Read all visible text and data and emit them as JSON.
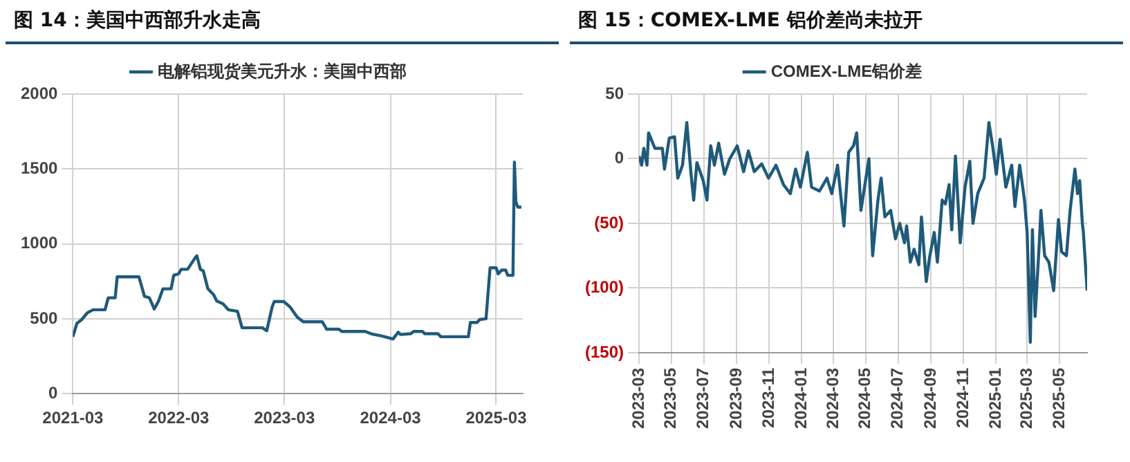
{
  "chart_data": [
    {
      "type": "line",
      "title": "图 14：美国中西部升水走高",
      "legend": "top",
      "grid": true,
      "marker": "none",
      "line_style": "solid",
      "x": [
        "2021-03-01",
        "2021-03-15",
        "2021-04-01",
        "2021-04-20",
        "2021-05-10",
        "2021-06-20",
        "2021-07-01",
        "2021-07-25",
        "2021-08-01",
        "2021-10-15",
        "2021-11-03",
        "2021-11-20",
        "2021-12-07",
        "2021-12-22",
        "2022-01-06",
        "2022-02-03",
        "2022-02-12",
        "2022-03-01",
        "2022-03-10",
        "2022-04-01",
        "2022-04-28",
        "2022-05-03",
        "2022-05-15",
        "2022-05-25",
        "2022-06-10",
        "2022-06-30",
        "2022-07-10",
        "2022-08-01",
        "2022-08-20",
        "2022-09-20",
        "2022-10-06",
        "2022-12-15",
        "2022-12-30",
        "2023-01-18",
        "2023-01-25",
        "2023-02-27",
        "2023-03-20",
        "2023-04-15",
        "2023-05-05",
        "2023-07-10",
        "2023-07-25",
        "2023-09-05",
        "2023-09-15",
        "2023-12-05",
        "2023-12-25",
        "2024-02-01",
        "2024-03-10",
        "2024-03-28",
        "2024-04-05",
        "2024-05-10",
        "2024-05-20",
        "2024-06-20",
        "2024-06-28",
        "2024-08-12",
        "2024-08-22",
        "2024-11-25",
        "2024-12-02",
        "2024-12-25",
        "2025-01-03",
        "2025-01-25",
        "2025-02-08",
        "2025-03-01",
        "2025-03-08",
        "2025-03-20",
        "2025-04-03",
        "2025-04-10",
        "2025-04-28",
        "2025-05-03",
        "2025-05-08",
        "2025-05-15",
        "2025-05-27"
      ],
      "series": [
        {
          "name": "电解铝现货美元升水：美国中西部",
          "color": "#1f5a7a",
          "values": [
            380,
            470,
            495,
            540,
            560,
            560,
            640,
            640,
            780,
            780,
            650,
            640,
            565,
            620,
            700,
            700,
            790,
            800,
            830,
            830,
            910,
            920,
            830,
            820,
            700,
            660,
            620,
            600,
            560,
            550,
            440,
            440,
            420,
            580,
            615,
            615,
            580,
            510,
            480,
            480,
            430,
            430,
            415,
            415,
            400,
            385,
            365,
            410,
            395,
            400,
            415,
            415,
            400,
            400,
            380,
            380,
            475,
            475,
            495,
            500,
            840,
            840,
            800,
            825,
            825,
            790,
            790,
            1545,
            1280,
            1245,
            1245
          ]
        }
      ],
      "xlim": [
        "2021-03",
        "2025-06"
      ],
      "xticks": [
        "2021-03",
        "2022-03",
        "2023-03",
        "2024-03",
        "2025-03"
      ],
      "ylim": [
        0,
        2000
      ],
      "yticks": [
        0,
        500,
        1000,
        1500,
        2000
      ]
    },
    {
      "type": "line",
      "title": "图 15：COMEX-LME 铝价差尚未拉开",
      "legend": "top",
      "grid": true,
      "marker": "none",
      "line_style": "solid",
      "x": [
        "2023-03-01",
        "2023-03-06",
        "2023-03-10",
        "2023-03-16",
        "2023-03-19",
        "2023-03-31",
        "2023-04-14",
        "2023-04-18",
        "2023-04-27",
        "2023-05-07",
        "2023-05-13",
        "2023-05-22",
        "2023-05-30",
        "2023-06-07",
        "2023-06-12",
        "2023-06-18",
        "2023-06-30",
        "2023-07-07",
        "2023-07-14",
        "2023-07-21",
        "2023-07-29",
        "2023-08-09",
        "2023-08-19",
        "2023-09-02",
        "2023-09-14",
        "2023-09-23",
        "2023-10-04",
        "2023-10-18",
        "2023-10-31",
        "2023-11-14",
        "2023-11-28",
        "2023-12-11",
        "2023-12-21",
        "2023-12-30",
        "2024-01-12",
        "2024-01-20",
        "2024-02-04",
        "2024-02-18",
        "2024-02-27",
        "2024-03-09",
        "2024-03-21",
        "2024-03-30",
        "2024-04-08",
        "2024-04-14",
        "2024-04-22",
        "2024-05-07",
        "2024-05-14",
        "2024-05-24",
        "2024-05-30",
        "2024-06-06",
        "2024-06-17",
        "2024-06-26",
        "2024-07-04",
        "2024-07-13",
        "2024-07-17",
        "2024-07-24",
        "2024-07-31",
        "2024-08-09",
        "2024-08-14",
        "2024-08-23",
        "2024-08-29",
        "2024-09-07",
        "2024-09-13",
        "2024-09-22",
        "2024-09-28",
        "2024-10-05",
        "2024-10-10",
        "2024-10-17",
        "2024-10-26",
        "2024-11-04",
        "2024-11-13",
        "2024-11-19",
        "2024-11-28",
        "2024-12-10",
        "2024-12-19",
        "2024-12-26",
        "2025-01-02",
        "2025-01-09",
        "2025-01-20",
        "2025-01-31",
        "2025-02-06",
        "2025-02-15",
        "2025-02-24",
        "2025-03-01",
        "2025-03-07",
        "2025-03-11",
        "2025-03-16",
        "2025-03-23",
        "2025-03-27",
        "2025-04-03",
        "2025-04-11",
        "2025-04-20",
        "2025-04-29",
        "2025-05-05",
        "2025-05-14",
        "2025-05-21",
        "2025-05-30",
        "2025-06-04",
        "2025-06-08",
        "2025-06-13",
        "2025-06-15",
        "2025-06-22"
      ],
      "series": [
        {
          "name": "COMEX-LME铝价差",
          "color": "#1f5a7a",
          "values": [
            2,
            -5,
            8,
            -5,
            20,
            8,
            8,
            -8,
            16,
            17,
            -15,
            -5,
            28,
            -12,
            -32,
            -3,
            -17,
            -32,
            10,
            -5,
            12,
            -12,
            0,
            10,
            -10,
            6,
            -10,
            -4,
            -15,
            -5,
            -20,
            -27,
            -8,
            -22,
            5,
            -22,
            -25,
            -15,
            -27,
            -5,
            -52,
            5,
            10,
            20,
            -40,
            0,
            -75,
            -32,
            -15,
            -45,
            -40,
            -62,
            -50,
            -65,
            -52,
            -80,
            -70,
            -82,
            -45,
            -95,
            -77,
            -57,
            -80,
            -32,
            -35,
            -20,
            -55,
            2,
            -65,
            -22,
            -2,
            -50,
            -27,
            -15,
            28,
            10,
            -12,
            15,
            -22,
            -5,
            -37,
            -5,
            -32,
            -57,
            -142,
            -55,
            -122,
            -72,
            -40,
            -75,
            -80,
            -102,
            -47,
            -72,
            -75,
            -40,
            -8,
            -27,
            -17,
            -50,
            -57,
            -102
          ]
        }
      ],
      "xlim": [
        "2023-03-01",
        "2025-06-22"
      ],
      "xticks": [
        "2023-03",
        "2023-05",
        "2023-07",
        "2023-09",
        "2023-11",
        "2024-01",
        "2024-03",
        "2024-05",
        "2024-07",
        "2024-09",
        "2024-11",
        "2025-01",
        "2025-03",
        "2025-05"
      ],
      "ylim": [
        -150,
        50
      ],
      "yticks": [
        {
          "value": -150,
          "label": "(150)"
        },
        {
          "value": -100,
          "label": "(100)"
        },
        {
          "value": -50,
          "label": "(50)"
        },
        0,
        50
      ]
    }
  ]
}
